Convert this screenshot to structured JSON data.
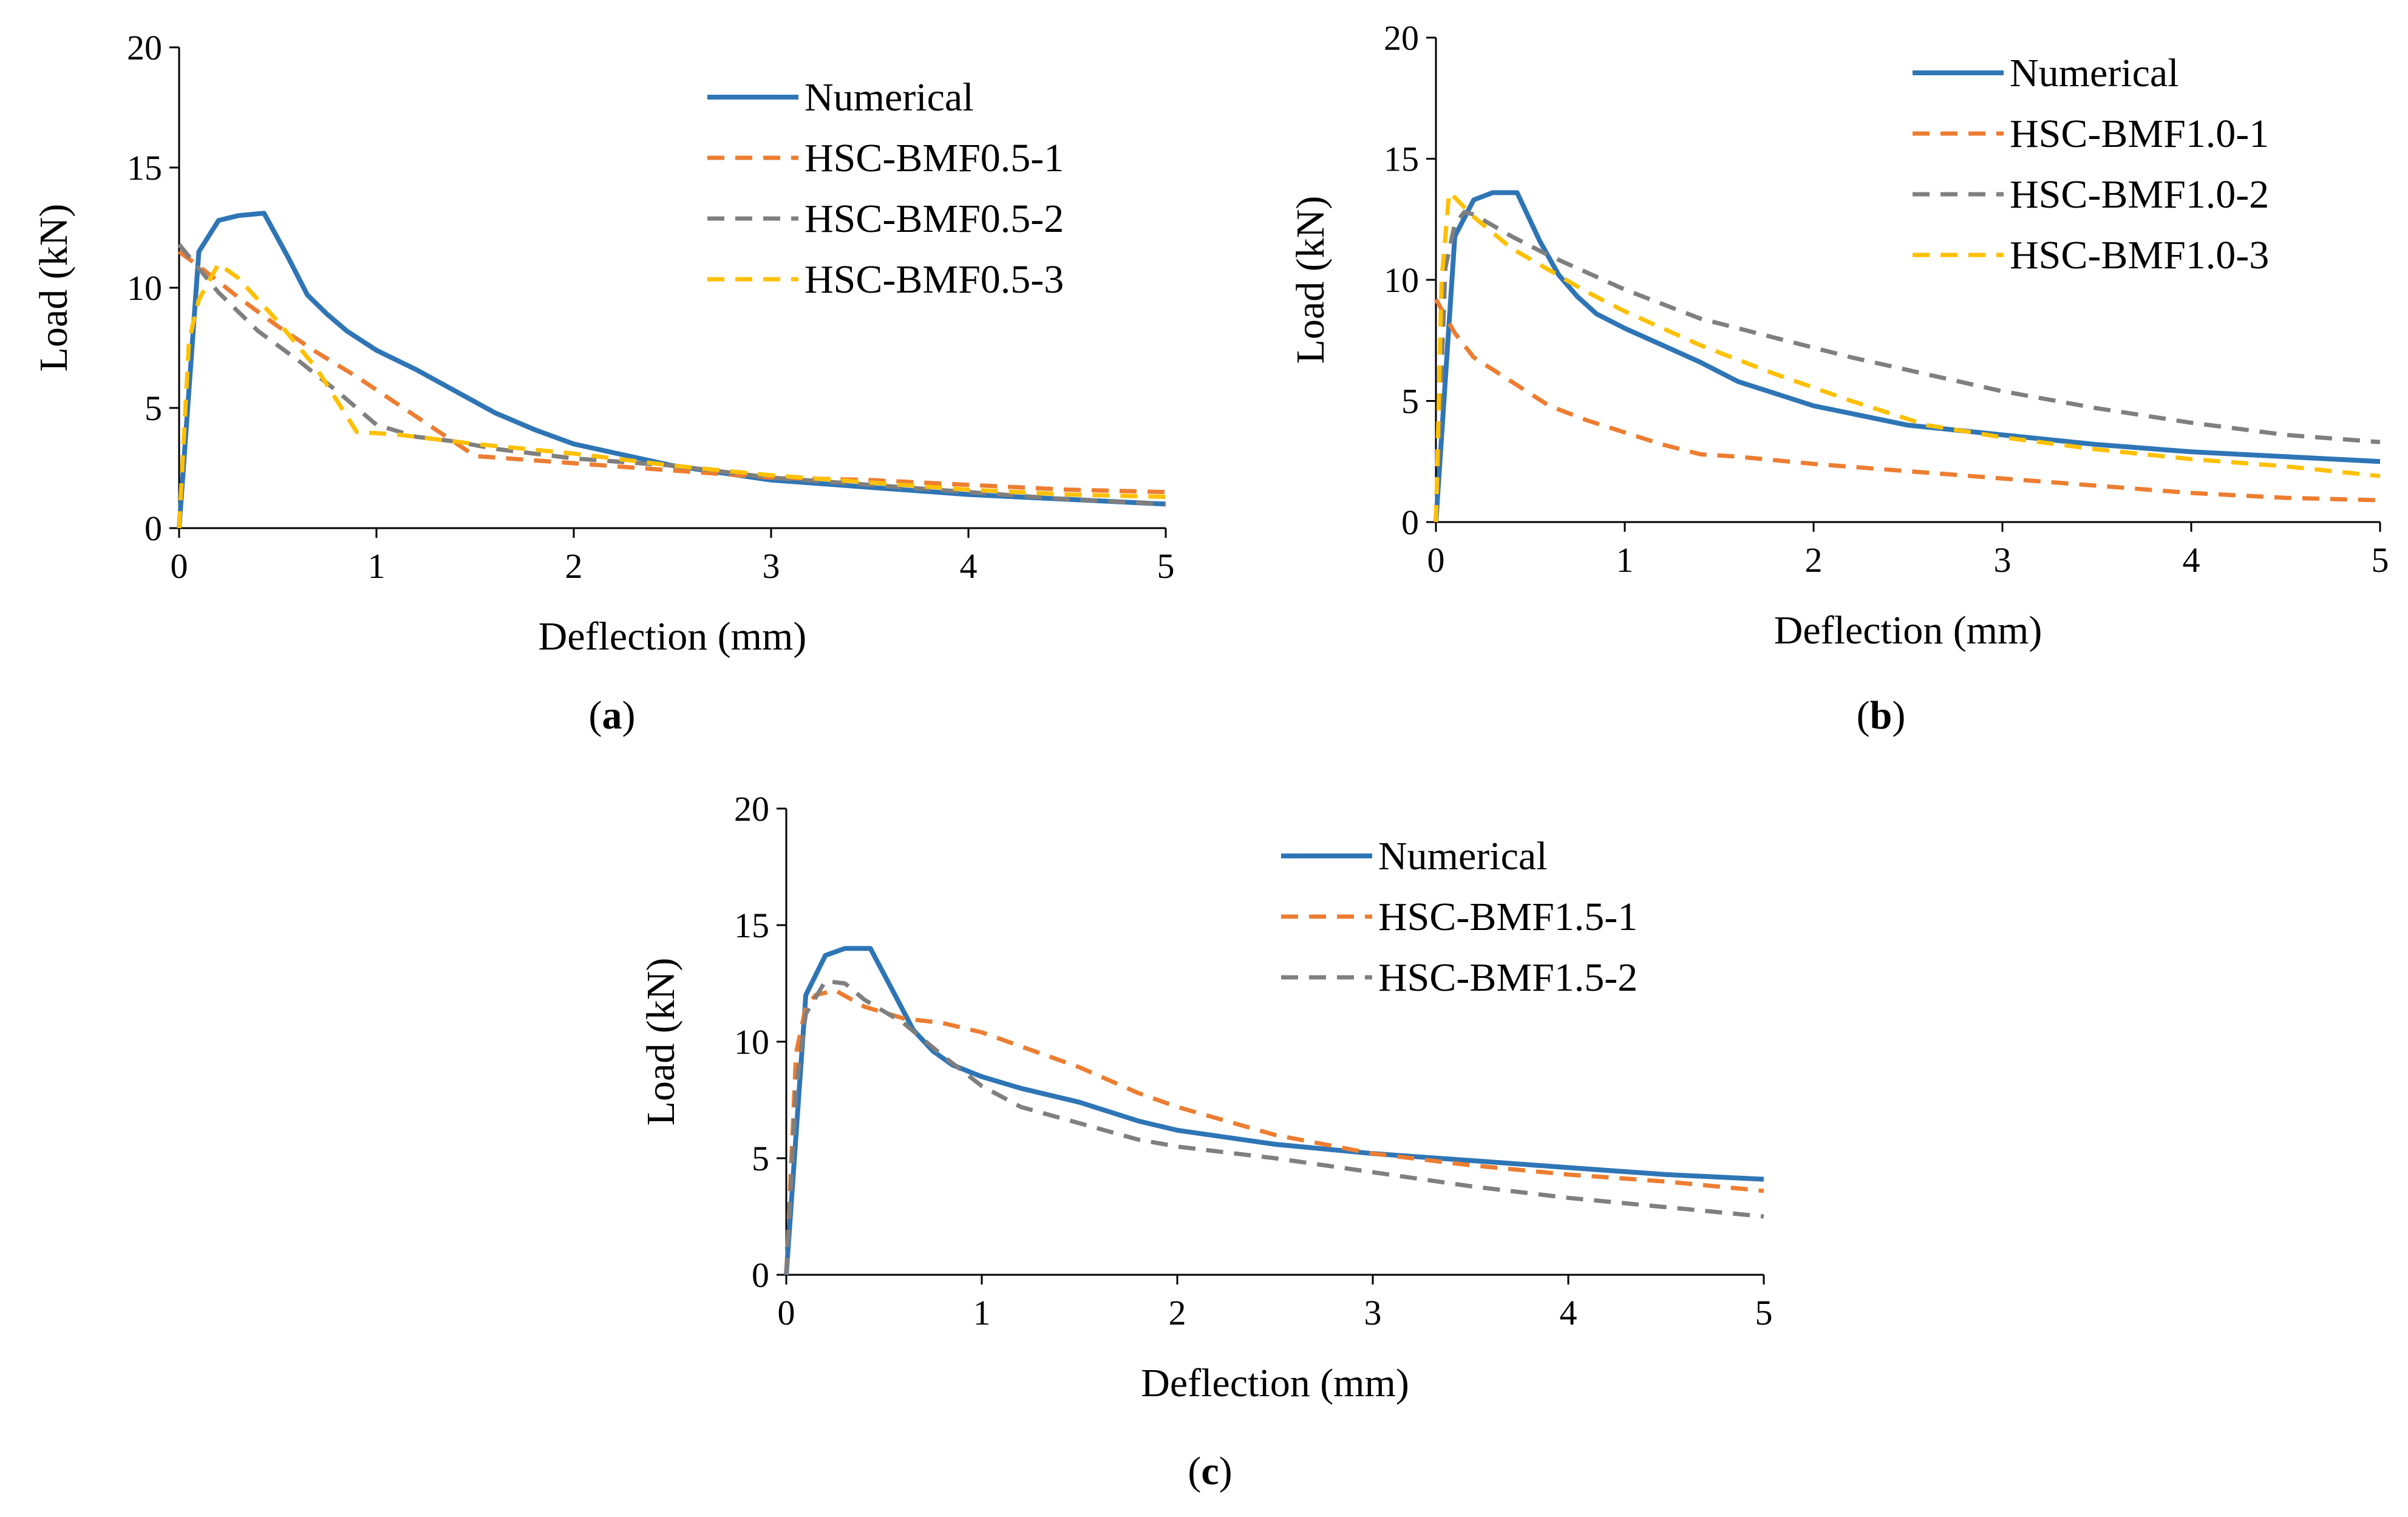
{
  "chart_data": [
    {
      "type": "line",
      "panel_label": "a",
      "xlabel": "Deflection (mm)",
      "ylabel": "Load (kN)",
      "xlim": [
        0,
        5
      ],
      "ylim": [
        0,
        20
      ],
      "xticks": [
        "0",
        "1",
        "2",
        "3",
        "4",
        "5"
      ],
      "yticks": [
        "0",
        "5",
        "10",
        "15",
        "20"
      ],
      "grid": false,
      "legend_position": "top-right",
      "series": [
        {
          "name": "Numerical",
          "color": "#2e75b6",
          "dash": "solid",
          "x": [
            0,
            0.1,
            0.2,
            0.3,
            0.43,
            0.55,
            0.65,
            0.75,
            0.85,
            1.0,
            1.2,
            1.4,
            1.6,
            1.8,
            2.0,
            2.5,
            3.0,
            3.5,
            4.0,
            4.5,
            5.0
          ],
          "y": [
            0,
            11.5,
            12.8,
            13.0,
            13.1,
            11.3,
            9.7,
            8.9,
            8.2,
            7.4,
            6.6,
            5.7,
            4.8,
            4.1,
            3.5,
            2.6,
            2.0,
            1.7,
            1.4,
            1.2,
            1.0
          ]
        },
        {
          "name": "HSC-BMF0.5-1",
          "color": "#ed7d31",
          "dash": "dashed",
          "x": [
            0,
            0.1,
            0.3,
            0.5,
            0.7,
            0.9,
            1.1,
            1.3,
            1.5,
            2.0,
            2.5,
            3.0,
            3.5,
            4.0,
            4.5,
            5.0
          ],
          "y": [
            11.5,
            10.9,
            9.6,
            8.4,
            7.3,
            6.3,
            5.2,
            4.1,
            3.0,
            2.7,
            2.4,
            2.1,
            2.0,
            1.8,
            1.6,
            1.5
          ]
        },
        {
          "name": "HSC-BMF0.5-2",
          "color": "#7f7f7f",
          "dash": "dashed",
          "x": [
            0,
            0.2,
            0.4,
            0.6,
            0.8,
            1.0,
            1.2,
            1.4,
            1.6,
            2.0,
            2.5,
            3.0,
            3.5,
            4.0,
            4.5,
            5.0
          ],
          "y": [
            11.8,
            9.8,
            8.2,
            7.0,
            5.7,
            4.3,
            3.8,
            3.6,
            3.3,
            2.9,
            2.6,
            2.1,
            1.8,
            1.5,
            1.2,
            1.0
          ]
        },
        {
          "name": "HSC-BMF0.5-3",
          "color": "#ffc000",
          "dash": "dashed",
          "x": [
            0,
            0.05,
            0.1,
            0.2,
            0.3,
            0.5,
            0.7,
            0.9,
            1.1,
            1.5,
            2.0,
            2.5,
            3.0,
            3.5,
            4.0,
            4.5,
            5.0
          ],
          "y": [
            0,
            7.8,
            9.5,
            11.0,
            10.4,
            8.6,
            6.6,
            4.0,
            3.9,
            3.5,
            3.1,
            2.6,
            2.2,
            1.9,
            1.6,
            1.4,
            1.3
          ]
        }
      ]
    },
    {
      "type": "line",
      "panel_label": "b",
      "xlabel": "Deflection (mm)",
      "ylabel": "Load (kN)",
      "xlim": [
        0,
        5
      ],
      "ylim": [
        0,
        20
      ],
      "xticks": [
        "0",
        "1",
        "2",
        "3",
        "4",
        "5"
      ],
      "yticks": [
        "0",
        "5",
        "10",
        "15",
        "20"
      ],
      "grid": false,
      "legend_position": "top-right",
      "series": [
        {
          "name": "Numerical",
          "color": "#2e75b6",
          "dash": "solid",
          "x": [
            0,
            0.1,
            0.2,
            0.3,
            0.43,
            0.55,
            0.65,
            0.75,
            0.85,
            1.0,
            1.2,
            1.4,
            1.6,
            1.8,
            2.0,
            2.5,
            3.0,
            3.5,
            4.0,
            4.5,
            5.0
          ],
          "y": [
            0,
            11.8,
            13.3,
            13.6,
            13.6,
            11.6,
            10.2,
            9.3,
            8.6,
            8.0,
            7.3,
            6.6,
            5.8,
            5.3,
            4.8,
            4.0,
            3.6,
            3.2,
            2.9,
            2.7,
            2.5
          ]
        },
        {
          "name": "HSC-BMF1.0-1",
          "color": "#ed7d31",
          "dash": "dashed",
          "x": [
            0,
            0.1,
            0.2,
            0.4,
            0.6,
            0.8,
            1.0,
            1.2,
            1.4,
            1.6,
            2.0,
            2.5,
            3.0,
            3.5,
            4.0,
            4.5,
            5.0
          ],
          "y": [
            9.2,
            7.8,
            6.8,
            5.8,
            4.8,
            4.2,
            3.7,
            3.2,
            2.8,
            2.7,
            2.4,
            2.1,
            1.8,
            1.5,
            1.2,
            1.0,
            0.9
          ]
        },
        {
          "name": "HSC-BMF1.0-2",
          "color": "#7f7f7f",
          "dash": "dashed",
          "x": [
            0,
            0.05,
            0.1,
            0.15,
            0.2,
            0.4,
            0.6,
            0.8,
            1.0,
            1.4,
            1.8,
            2.2,
            2.6,
            3.0,
            3.5,
            4.0,
            4.5,
            5.0
          ],
          "y": [
            0,
            10.5,
            12.3,
            12.8,
            12.7,
            11.8,
            11.0,
            10.3,
            9.6,
            8.4,
            7.6,
            6.8,
            6.1,
            5.4,
            4.7,
            4.1,
            3.6,
            3.3
          ]
        },
        {
          "name": "HSC-BMF1.0-3",
          "color": "#ffc000",
          "dash": "dashed",
          "x": [
            0,
            0.03,
            0.07,
            0.1,
            0.2,
            0.4,
            0.6,
            0.8,
            1.0,
            1.4,
            1.8,
            2.2,
            2.6,
            3.0,
            3.5,
            4.0,
            4.5,
            5.0
          ],
          "y": [
            0,
            10.0,
            13.6,
            13.4,
            12.6,
            11.3,
            10.4,
            9.5,
            8.7,
            7.3,
            6.1,
            5.0,
            4.0,
            3.5,
            3.0,
            2.6,
            2.3,
            1.9
          ]
        }
      ]
    },
    {
      "type": "line",
      "panel_label": "c",
      "xlabel": "Deflection (mm)",
      "ylabel": "Load (kN)",
      "xlim": [
        0,
        5
      ],
      "ylim": [
        0,
        20
      ],
      "xticks": [
        "0",
        "1",
        "2",
        "3",
        "4",
        "5"
      ],
      "yticks": [
        "0",
        "5",
        "10",
        "15",
        "20"
      ],
      "grid": false,
      "legend_position": "top-right",
      "series": [
        {
          "name": "Numerical",
          "color": "#2e75b6",
          "dash": "solid",
          "x": [
            0,
            0.1,
            0.2,
            0.3,
            0.43,
            0.55,
            0.65,
            0.75,
            0.85,
            1.0,
            1.2,
            1.5,
            1.8,
            2.0,
            2.5,
            3.0,
            3.5,
            4.0,
            4.5,
            5.0
          ],
          "y": [
            0,
            12.0,
            13.7,
            14.0,
            14.0,
            12.1,
            10.5,
            9.6,
            9.0,
            8.5,
            8.0,
            7.4,
            6.6,
            6.2,
            5.6,
            5.2,
            4.9,
            4.6,
            4.3,
            4.1
          ]
        },
        {
          "name": "HSC-BMF1.5-1",
          "color": "#ed7d31",
          "dash": "dashed",
          "x": [
            0,
            0.05,
            0.1,
            0.15,
            0.25,
            0.4,
            0.6,
            0.8,
            1.0,
            1.2,
            1.5,
            1.8,
            2.0,
            2.5,
            3.0,
            3.5,
            4.0,
            4.5,
            5.0
          ],
          "y": [
            0,
            9.5,
            11.5,
            12.0,
            12.2,
            11.5,
            11.0,
            10.8,
            10.4,
            9.8,
            8.9,
            7.8,
            7.2,
            6.0,
            5.2,
            4.7,
            4.3,
            4.0,
            3.6
          ]
        },
        {
          "name": "HSC-BMF1.5-2",
          "color": "#7f7f7f",
          "dash": "dashed",
          "x": [
            0,
            0.05,
            0.1,
            0.2,
            0.3,
            0.4,
            0.6,
            0.8,
            1.0,
            1.2,
            1.5,
            1.8,
            2.0,
            2.5,
            3.0,
            3.5,
            4.0,
            4.5,
            5.0
          ],
          "y": [
            0,
            8.0,
            11.2,
            12.6,
            12.5,
            11.8,
            10.8,
            9.4,
            8.1,
            7.2,
            6.5,
            5.8,
            5.5,
            5.0,
            4.4,
            3.8,
            3.3,
            2.9,
            2.5
          ]
        }
      ]
    }
  ]
}
